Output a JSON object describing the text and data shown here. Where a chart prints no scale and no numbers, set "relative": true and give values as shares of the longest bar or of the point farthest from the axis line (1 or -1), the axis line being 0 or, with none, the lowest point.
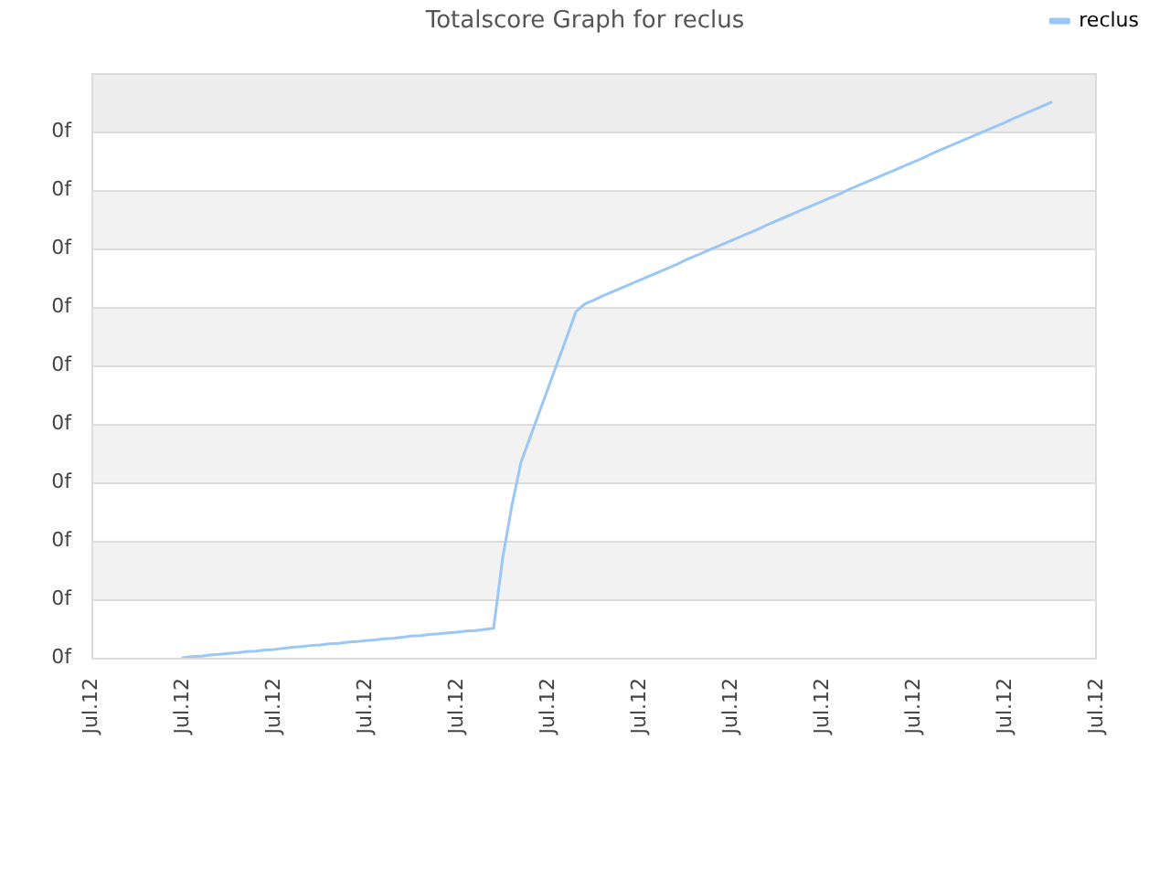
{
  "chart_data": {
    "type": "line",
    "title": "Totalscore Graph for reclus",
    "relative": true,
    "categories": [
      "Jul.12",
      null,
      null,
      null,
      null,
      null,
      null,
      null,
      null,
      null,
      "Jul.12",
      null,
      null,
      null,
      null,
      null,
      null,
      null,
      null,
      null,
      "Jul.12",
      null,
      null,
      null,
      null,
      null,
      null,
      null,
      null,
      null,
      "Jul.12",
      null,
      null,
      null,
      null,
      null,
      null,
      null,
      null,
      null,
      "Jul.12",
      null,
      null,
      null,
      null,
      null,
      null,
      null,
      null,
      null,
      "Jul.12",
      null,
      null,
      null,
      null,
      null,
      null,
      null,
      null,
      null,
      "Jul.12",
      null,
      null,
      null,
      null,
      null,
      null,
      null,
      null,
      null,
      "Jul.12",
      null,
      null,
      null,
      null,
      null,
      null,
      null,
      null,
      null,
      "Jul.12",
      null,
      null,
      null,
      null,
      null,
      null,
      null,
      null,
      null,
      "Jul.12",
      null,
      null,
      null,
      null,
      null,
      null,
      null,
      null,
      null,
      "Jul.12",
      null,
      null,
      null,
      null,
      null,
      null,
      null,
      null,
      null,
      "Jul.12"
    ],
    "series": [
      {
        "name": "reclus",
        "color": "#9ac7f5",
        "values": [
          null,
          null,
          null,
          null,
          null,
          null,
          null,
          null,
          null,
          null,
          0,
          0.002,
          0.003,
          0.005,
          0.006,
          0.008,
          0.009,
          0.011,
          0.012,
          0.014,
          0.015,
          0.017,
          0.019,
          0.02,
          0.022,
          0.023,
          0.025,
          0.026,
          0.028,
          0.029,
          0.031,
          0.032,
          0.034,
          0.035,
          0.037,
          0.039,
          0.04,
          0.042,
          0.043,
          0.045,
          0.046,
          0.048,
          0.049,
          0.051,
          0.053,
          0.18,
          0.274,
          0.352,
          0.397,
          0.442,
          0.487,
          0.532,
          0.577,
          0.623,
          0.637,
          0.644,
          0.652,
          0.659,
          0.666,
          0.673,
          0.68,
          0.687,
          0.694,
          0.701,
          0.708,
          0.716,
          0.723,
          0.73,
          0.737,
          0.744,
          0.751,
          0.758,
          0.765,
          0.772,
          0.78,
          0.787,
          0.794,
          0.801,
          0.808,
          0.815,
          0.822,
          0.829,
          0.836,
          0.844,
          0.851,
          0.858,
          0.865,
          0.872,
          0.879,
          0.886,
          0.893,
          0.9,
          0.908,
          0.915,
          0.922,
          0.929,
          0.936,
          0.943,
          0.95,
          0.957,
          0.964,
          0.972,
          0.979,
          0.986,
          0.993,
          1,
          null,
          null,
          null,
          null,
          null
        ]
      }
    ],
    "bands": [
      {
        "axis": "y",
        "from": 0.105,
        "to": 0.211,
        "color": "#f2f2f2"
      },
      {
        "axis": "y",
        "from": 0.316,
        "to": 0.421,
        "color": "#f2f2f2"
      },
      {
        "axis": "y",
        "from": 0.526,
        "to": 0.632,
        "color": "#f2f2f2"
      },
      {
        "axis": "y",
        "from": 0.737,
        "to": 0.842,
        "color": "#f2f2f2"
      },
      {
        "axis": "y",
        "from": 0.947,
        "to": 1.053,
        "color": "#ededed"
      }
    ],
    "annotations": [
      "0f",
      "0f",
      "0f",
      "0f",
      "0f",
      "0f",
      "0f",
      "0f",
      "0f",
      "0f"
    ],
    "grid": "y",
    "legend": "top right",
    "marker": "none"
  }
}
